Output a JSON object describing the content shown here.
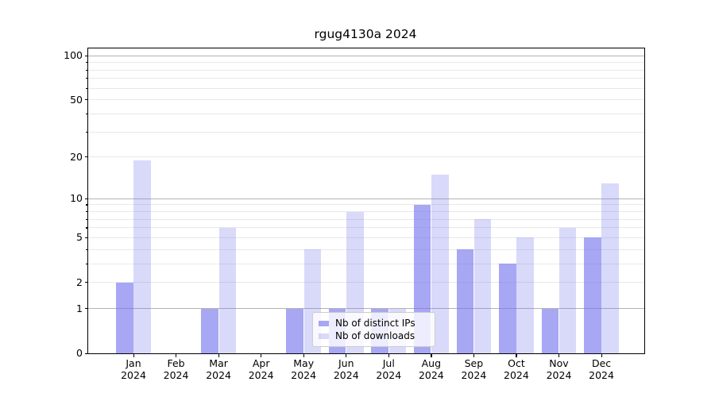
{
  "chart_data": {
    "type": "bar",
    "title": "rgug4130a 2024",
    "year_label": "2024",
    "categories": [
      "Jan",
      "Feb",
      "Mar",
      "Apr",
      "May",
      "Jun",
      "Jul",
      "Aug",
      "Sep",
      "Oct",
      "Nov",
      "Dec"
    ],
    "series": [
      {
        "name": "Nb of distinct IPs",
        "color": "rgba(120,120,238,0.65)",
        "values": [
          2,
          0,
          1,
          0,
          1,
          1,
          1,
          9,
          4,
          3,
          1,
          5
        ]
      },
      {
        "name": "Nb of downloads",
        "color": "rgba(120,120,238,0.28)",
        "values": [
          19,
          0,
          6,
          0,
          4,
          8,
          1,
          15,
          7,
          5,
          6,
          13
        ]
      }
    ],
    "xlabel": "",
    "ylabel": "",
    "yscale": "log1p",
    "ylim": [
      0,
      112
    ],
    "yticks": [
      0,
      1,
      2,
      5,
      10,
      20,
      50,
      100
    ],
    "grid": {
      "major_ticks": [
        1,
        10,
        100
      ],
      "minor_ticks": [
        2,
        3,
        4,
        5,
        6,
        7,
        8,
        9,
        20,
        30,
        40,
        50,
        60,
        70,
        80,
        90
      ],
      "major_color": "#b3b3b3",
      "minor_color": "#e8e8e8"
    },
    "legend": {
      "position": "lower-center"
    }
  }
}
